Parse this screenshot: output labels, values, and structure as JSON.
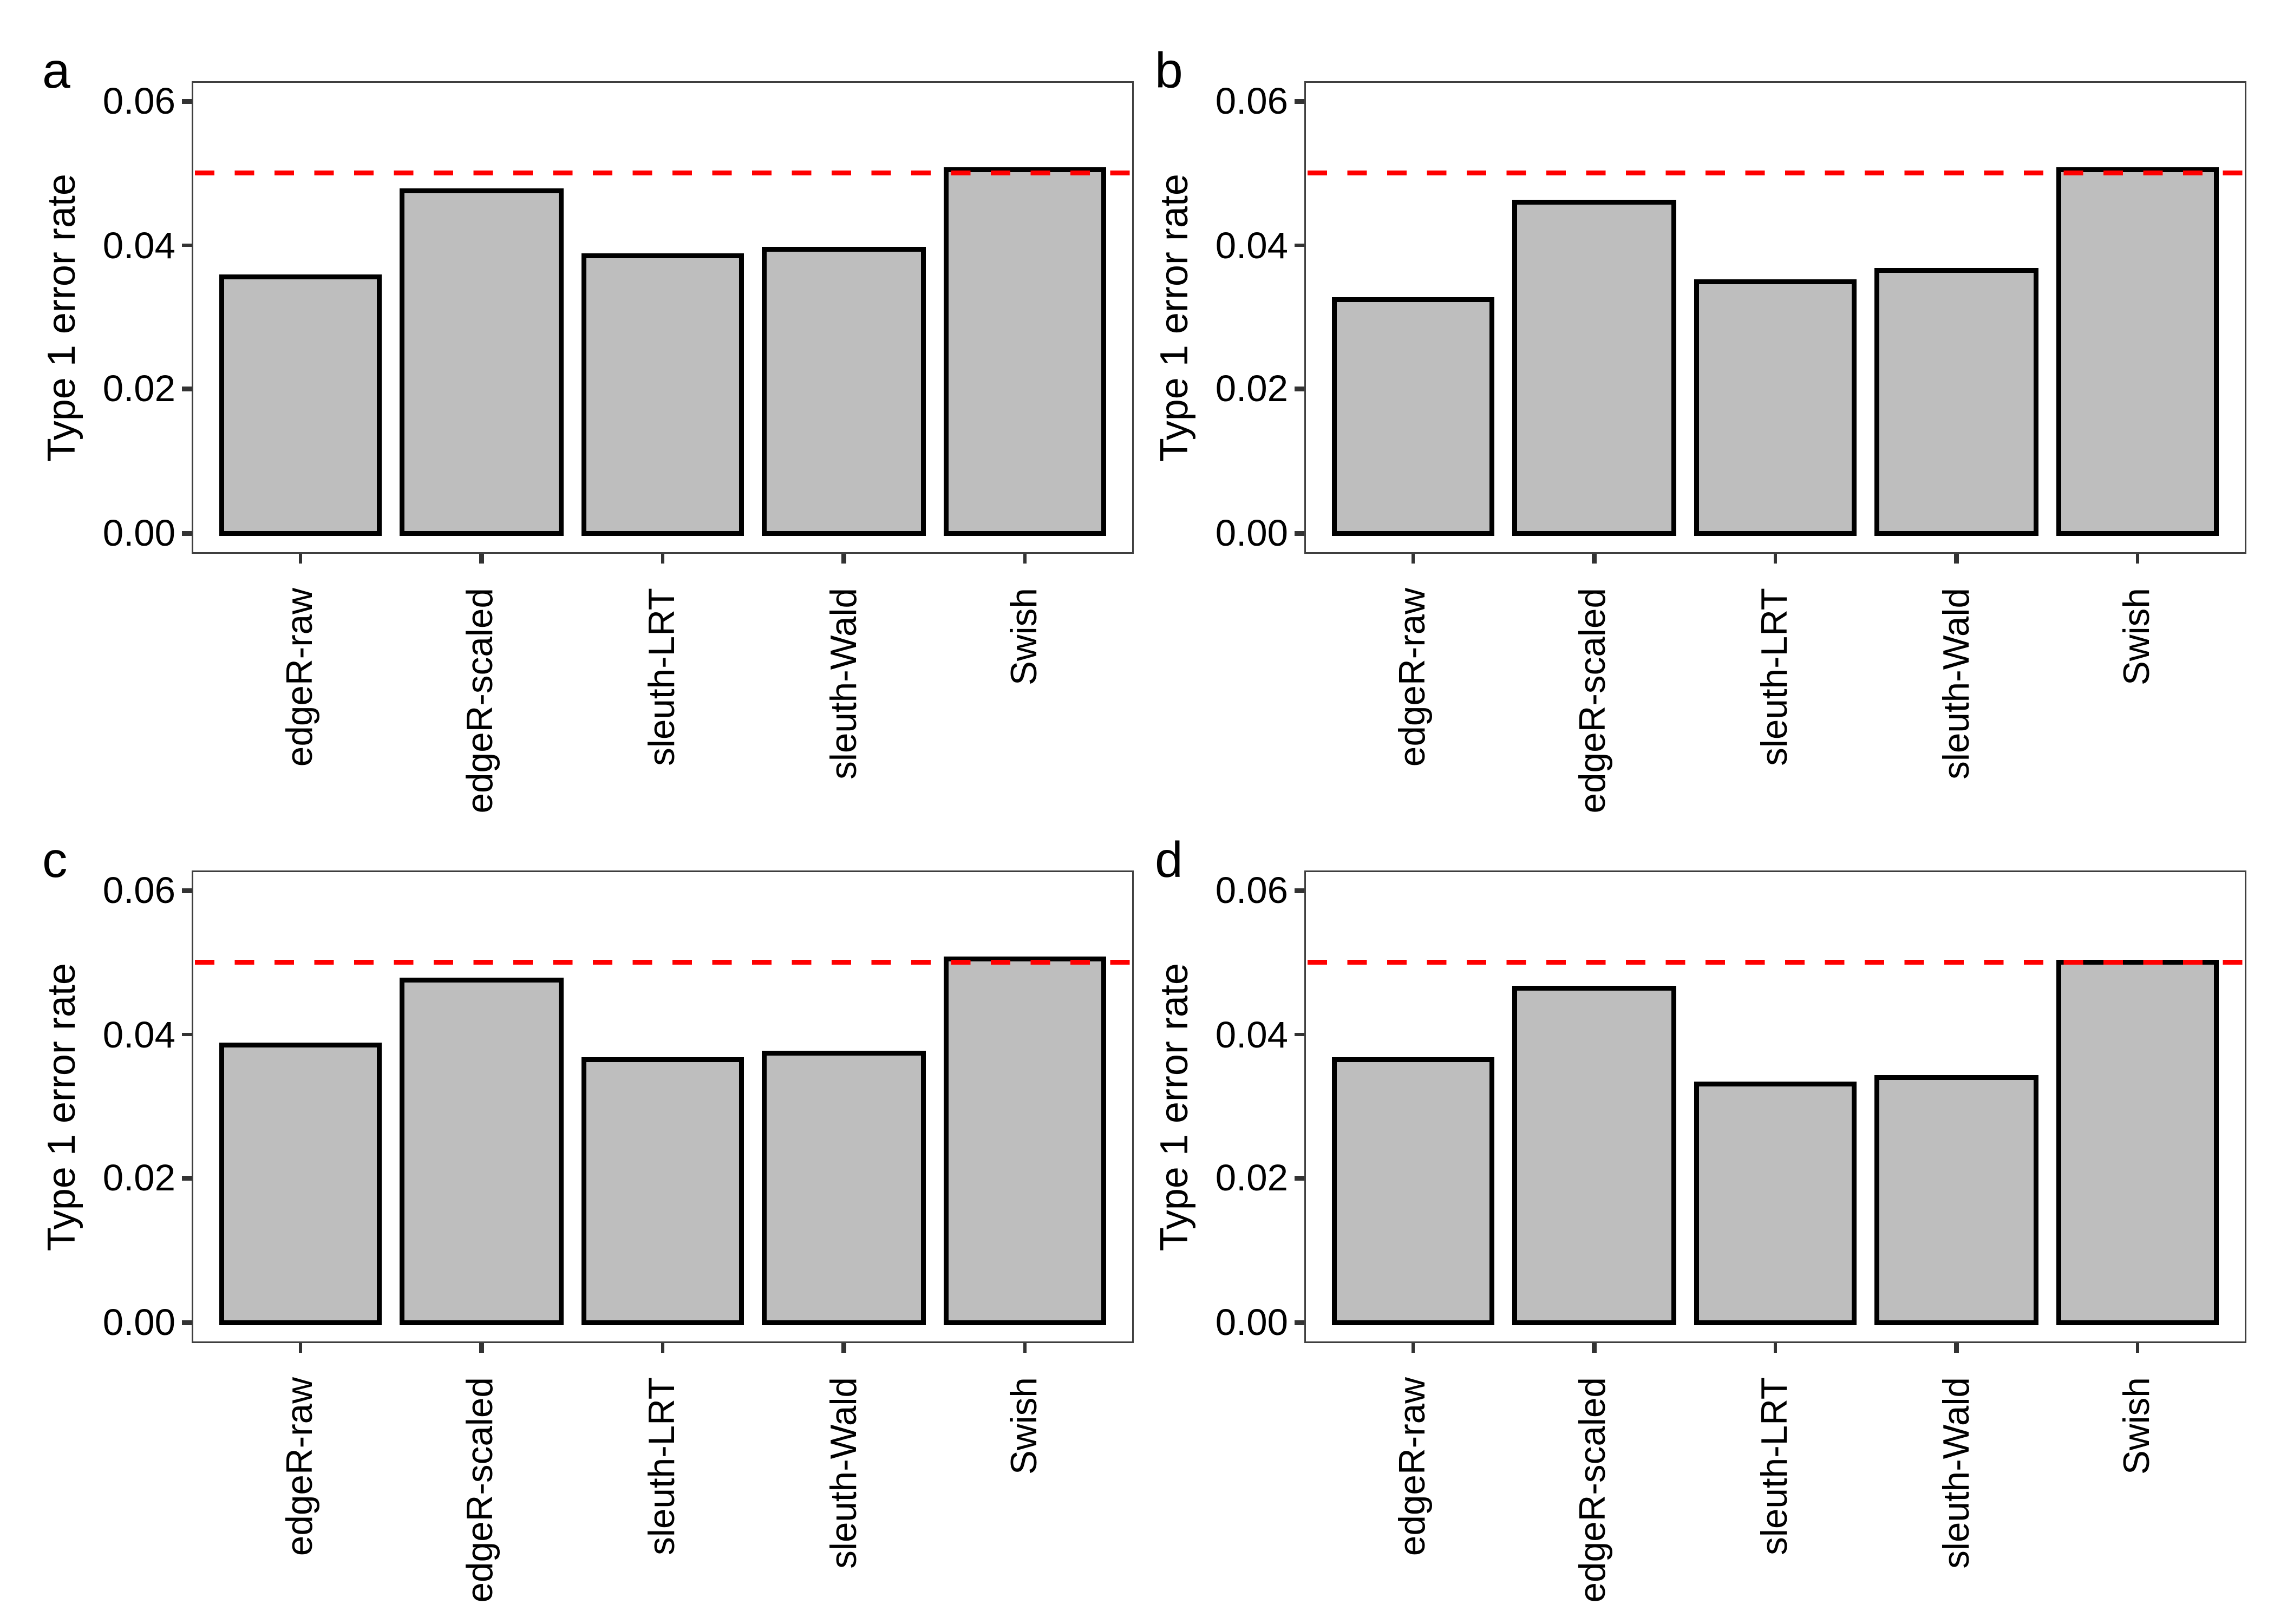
{
  "figure": {
    "ylabel": "Type 1 error rate",
    "y_tick_labels": [
      "0.00",
      "0.02",
      "0.04",
      "0.06"
    ],
    "panel_letters": [
      "a",
      "b",
      "c",
      "d"
    ],
    "colors": {
      "bar_fill": "#bebebe",
      "bar_border": "#000000",
      "reference_line": "#ff0000",
      "panel_border": "#3f3f3f",
      "tick_color": "#333333"
    }
  },
  "chart_data": [
    {
      "panel": "a",
      "type": "bar",
      "categories": [
        "edgeR-raw",
        "edgeR-scaled",
        "sleuth-LRT",
        "sleuth-Wald",
        "Swish"
      ],
      "values": [
        0.0355,
        0.0475,
        0.0385,
        0.0395,
        0.0505
      ],
      "title": "",
      "xlabel": "",
      "ylabel": "Type 1 error rate",
      "yticks": [
        0,
        0.02,
        0.04,
        0.06
      ],
      "ytick_labels": [
        "0.00",
        "0.02",
        "0.04",
        "0.06"
      ],
      "ylim": [
        0,
        0.063
      ],
      "reference_line": 0.05,
      "grid": false,
      "legend": "none"
    },
    {
      "panel": "b",
      "type": "bar",
      "categories": [
        "edgeR-raw",
        "edgeR-scaled",
        "sleuth-LRT",
        "sleuth-Wald",
        "Swish"
      ],
      "values": [
        0.0325,
        0.046,
        0.035,
        0.0365,
        0.0505
      ],
      "title": "",
      "xlabel": "",
      "ylabel": "Type 1 error rate",
      "yticks": [
        0,
        0.02,
        0.04,
        0.06
      ],
      "ytick_labels": [
        "0.00",
        "0.02",
        "0.04",
        "0.06"
      ],
      "ylim": [
        0,
        0.063
      ],
      "reference_line": 0.05,
      "grid": false,
      "legend": "none"
    },
    {
      "panel": "c",
      "type": "bar",
      "categories": [
        "edgeR-raw",
        "edgeR-scaled",
        "sleuth-LRT",
        "sleuth-Wald",
        "Swish"
      ],
      "values": [
        0.0385,
        0.0475,
        0.0365,
        0.0375,
        0.0505
      ],
      "title": "",
      "xlabel": "",
      "ylabel": "Type 1 error rate",
      "yticks": [
        0,
        0.02,
        0.04,
        0.06
      ],
      "ytick_labels": [
        "0.00",
        "0.02",
        "0.04",
        "0.06"
      ],
      "ylim": [
        0,
        0.063
      ],
      "reference_line": 0.05,
      "grid": false,
      "legend": "none"
    },
    {
      "panel": "d",
      "type": "bar",
      "categories": [
        "edgeR-raw",
        "edgeR-scaled",
        "sleuth-LRT",
        "sleuth-Wald",
        "Swish"
      ],
      "values": [
        0.0365,
        0.0465,
        0.033,
        0.034,
        0.05
      ],
      "title": "",
      "xlabel": "",
      "ylabel": "Type 1 error rate",
      "yticks": [
        0,
        0.02,
        0.04,
        0.06
      ],
      "ytick_labels": [
        "0.00",
        "0.02",
        "0.04",
        "0.06"
      ],
      "ylim": [
        0,
        0.063
      ],
      "reference_line": 0.05,
      "grid": false,
      "legend": "none"
    }
  ]
}
